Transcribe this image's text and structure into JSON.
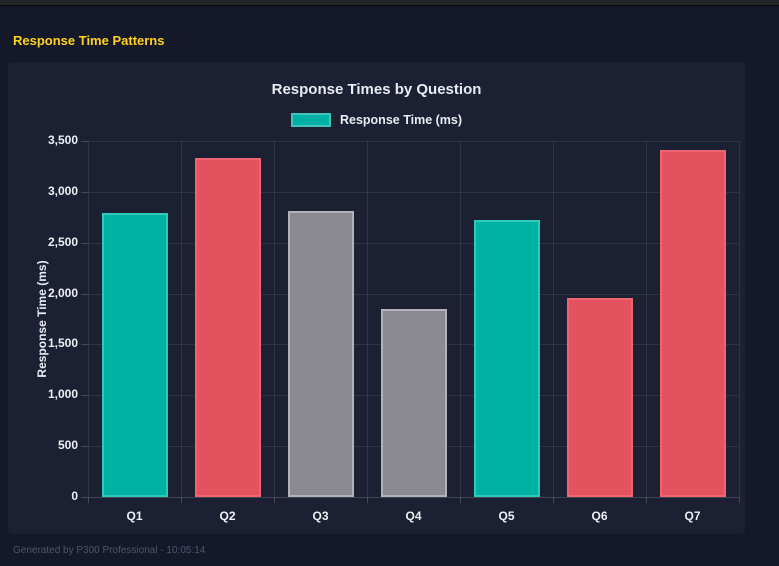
{
  "header": {
    "title": "Response Time Patterns"
  },
  "footer": {
    "text": "Generated by P300 Professional - 10:05:14"
  },
  "chart_data": {
    "type": "bar",
    "title": "Response Times by Question",
    "categories": [
      "Q1",
      "Q2",
      "Q3",
      "Q4",
      "Q5",
      "Q6",
      "Q7"
    ],
    "series": [
      {
        "name": "Response Time (ms)",
        "values": [
          2795,
          3330,
          2810,
          1845,
          2725,
          1960,
          3410
        ],
        "bar_colors": [
          "#00b2a4",
          "#e4525f",
          "#8a8a90",
          "#8a8a90",
          "#00b2a4",
          "#e4525f",
          "#e4525f"
        ],
        "bar_border_colors": [
          "#2fc9ba",
          "#ee6570",
          "#b2b2b8",
          "#b2b2b8",
          "#2fc9ba",
          "#ee6570",
          "#ee6570"
        ]
      }
    ],
    "legend": {
      "label": "Response Time (ms)",
      "swatch_color": "#00b2a4",
      "position": "top"
    },
    "xlabel": "",
    "ylabel": "Response Time (ms)",
    "ylim": [
      0,
      3500
    ],
    "grid": true,
    "yticks": [
      {
        "value": 3500,
        "label": "3,500"
      },
      {
        "value": 3000,
        "label": "3,000"
      },
      {
        "value": 2500,
        "label": "2,500"
      },
      {
        "value": 2000,
        "label": "2,000"
      },
      {
        "value": 1500,
        "label": "1,500"
      },
      {
        "value": 1000,
        "label": "1,000"
      },
      {
        "value": 500,
        "label": "500"
      },
      {
        "value": 0,
        "label": "0"
      }
    ]
  },
  "theme": {
    "page_bg": "#141829",
    "card_bg": "#1b2032",
    "accent_yellow": "#ffd21e",
    "text_color": "#e9ecf2",
    "muted_text": "#4f5570",
    "grid_color": "rgba(255,255,255,0.09)",
    "teal": "#00b2a4",
    "red": "#e4525f",
    "gray": "#8a8a90"
  }
}
